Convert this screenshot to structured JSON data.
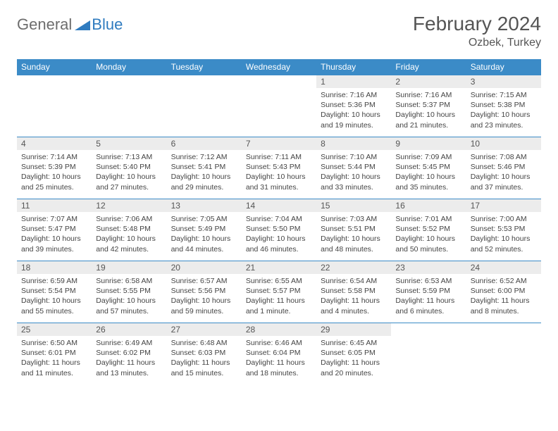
{
  "logo": {
    "general": "General",
    "blue": "Blue"
  },
  "title": "February 2024",
  "location": "Ozbek, Turkey",
  "colors": {
    "header_bg": "#3b8bc7",
    "row_border": "#3b8bc7",
    "daynum_bg": "#ececec",
    "text": "#444444",
    "logo_gray": "#6d6d6d",
    "logo_blue": "#2f7bbf"
  },
  "weekdays": [
    "Sunday",
    "Monday",
    "Tuesday",
    "Wednesday",
    "Thursday",
    "Friday",
    "Saturday"
  ],
  "weeks": [
    [
      {
        "empty": true
      },
      {
        "empty": true
      },
      {
        "empty": true
      },
      {
        "empty": true
      },
      {
        "day": "1",
        "sunrise": "Sunrise: 7:16 AM",
        "sunset": "Sunset: 5:36 PM",
        "daylight": "Daylight: 10 hours and 19 minutes."
      },
      {
        "day": "2",
        "sunrise": "Sunrise: 7:16 AM",
        "sunset": "Sunset: 5:37 PM",
        "daylight": "Daylight: 10 hours and 21 minutes."
      },
      {
        "day": "3",
        "sunrise": "Sunrise: 7:15 AM",
        "sunset": "Sunset: 5:38 PM",
        "daylight": "Daylight: 10 hours and 23 minutes."
      }
    ],
    [
      {
        "day": "4",
        "sunrise": "Sunrise: 7:14 AM",
        "sunset": "Sunset: 5:39 PM",
        "daylight": "Daylight: 10 hours and 25 minutes."
      },
      {
        "day": "5",
        "sunrise": "Sunrise: 7:13 AM",
        "sunset": "Sunset: 5:40 PM",
        "daylight": "Daylight: 10 hours and 27 minutes."
      },
      {
        "day": "6",
        "sunrise": "Sunrise: 7:12 AM",
        "sunset": "Sunset: 5:41 PM",
        "daylight": "Daylight: 10 hours and 29 minutes."
      },
      {
        "day": "7",
        "sunrise": "Sunrise: 7:11 AM",
        "sunset": "Sunset: 5:43 PM",
        "daylight": "Daylight: 10 hours and 31 minutes."
      },
      {
        "day": "8",
        "sunrise": "Sunrise: 7:10 AM",
        "sunset": "Sunset: 5:44 PM",
        "daylight": "Daylight: 10 hours and 33 minutes."
      },
      {
        "day": "9",
        "sunrise": "Sunrise: 7:09 AM",
        "sunset": "Sunset: 5:45 PM",
        "daylight": "Daylight: 10 hours and 35 minutes."
      },
      {
        "day": "10",
        "sunrise": "Sunrise: 7:08 AM",
        "sunset": "Sunset: 5:46 PM",
        "daylight": "Daylight: 10 hours and 37 minutes."
      }
    ],
    [
      {
        "day": "11",
        "sunrise": "Sunrise: 7:07 AM",
        "sunset": "Sunset: 5:47 PM",
        "daylight": "Daylight: 10 hours and 39 minutes."
      },
      {
        "day": "12",
        "sunrise": "Sunrise: 7:06 AM",
        "sunset": "Sunset: 5:48 PM",
        "daylight": "Daylight: 10 hours and 42 minutes."
      },
      {
        "day": "13",
        "sunrise": "Sunrise: 7:05 AM",
        "sunset": "Sunset: 5:49 PM",
        "daylight": "Daylight: 10 hours and 44 minutes."
      },
      {
        "day": "14",
        "sunrise": "Sunrise: 7:04 AM",
        "sunset": "Sunset: 5:50 PM",
        "daylight": "Daylight: 10 hours and 46 minutes."
      },
      {
        "day": "15",
        "sunrise": "Sunrise: 7:03 AM",
        "sunset": "Sunset: 5:51 PM",
        "daylight": "Daylight: 10 hours and 48 minutes."
      },
      {
        "day": "16",
        "sunrise": "Sunrise: 7:01 AM",
        "sunset": "Sunset: 5:52 PM",
        "daylight": "Daylight: 10 hours and 50 minutes."
      },
      {
        "day": "17",
        "sunrise": "Sunrise: 7:00 AM",
        "sunset": "Sunset: 5:53 PM",
        "daylight": "Daylight: 10 hours and 52 minutes."
      }
    ],
    [
      {
        "day": "18",
        "sunrise": "Sunrise: 6:59 AM",
        "sunset": "Sunset: 5:54 PM",
        "daylight": "Daylight: 10 hours and 55 minutes."
      },
      {
        "day": "19",
        "sunrise": "Sunrise: 6:58 AM",
        "sunset": "Sunset: 5:55 PM",
        "daylight": "Daylight: 10 hours and 57 minutes."
      },
      {
        "day": "20",
        "sunrise": "Sunrise: 6:57 AM",
        "sunset": "Sunset: 5:56 PM",
        "daylight": "Daylight: 10 hours and 59 minutes."
      },
      {
        "day": "21",
        "sunrise": "Sunrise: 6:55 AM",
        "sunset": "Sunset: 5:57 PM",
        "daylight": "Daylight: 11 hours and 1 minute."
      },
      {
        "day": "22",
        "sunrise": "Sunrise: 6:54 AM",
        "sunset": "Sunset: 5:58 PM",
        "daylight": "Daylight: 11 hours and 4 minutes."
      },
      {
        "day": "23",
        "sunrise": "Sunrise: 6:53 AM",
        "sunset": "Sunset: 5:59 PM",
        "daylight": "Daylight: 11 hours and 6 minutes."
      },
      {
        "day": "24",
        "sunrise": "Sunrise: 6:52 AM",
        "sunset": "Sunset: 6:00 PM",
        "daylight": "Daylight: 11 hours and 8 minutes."
      }
    ],
    [
      {
        "day": "25",
        "sunrise": "Sunrise: 6:50 AM",
        "sunset": "Sunset: 6:01 PM",
        "daylight": "Daylight: 11 hours and 11 minutes."
      },
      {
        "day": "26",
        "sunrise": "Sunrise: 6:49 AM",
        "sunset": "Sunset: 6:02 PM",
        "daylight": "Daylight: 11 hours and 13 minutes."
      },
      {
        "day": "27",
        "sunrise": "Sunrise: 6:48 AM",
        "sunset": "Sunset: 6:03 PM",
        "daylight": "Daylight: 11 hours and 15 minutes."
      },
      {
        "day": "28",
        "sunrise": "Sunrise: 6:46 AM",
        "sunset": "Sunset: 6:04 PM",
        "daylight": "Daylight: 11 hours and 18 minutes."
      },
      {
        "day": "29",
        "sunrise": "Sunrise: 6:45 AM",
        "sunset": "Sunset: 6:05 PM",
        "daylight": "Daylight: 11 hours and 20 minutes."
      },
      {
        "empty": true
      },
      {
        "empty": true
      }
    ]
  ]
}
